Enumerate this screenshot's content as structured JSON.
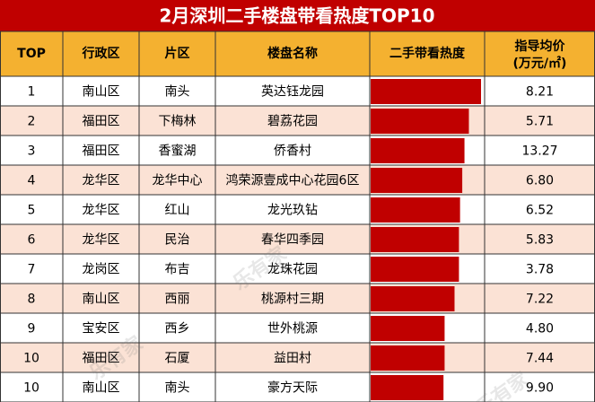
{
  "title": "2月深圳二手楼盘带看热度TOP10",
  "headers": [
    "TOP",
    "行政区",
    "片区",
    "楼盘名称",
    "二手带看热度",
    "指导均价"
  ],
  "price_unit": "(万元/㎡)",
  "watermark": "乐有家",
  "rows": [
    {
      "rank": 1,
      "district": "南山区",
      "area": "南头",
      "name": "英达钰龙园",
      "heat": 100,
      "price": "8.21"
    },
    {
      "rank": 2,
      "district": "福田区",
      "area": "下梅林",
      "name": "碧荔花园",
      "heat": 89,
      "price": "5.71"
    },
    {
      "rank": 3,
      "district": "福田区",
      "area": "香蜜湖",
      "name": "侨香村",
      "heat": 85,
      "price": "13.27"
    },
    {
      "rank": 4,
      "district": "龙华区",
      "area": "龙华中心",
      "name": "鸿荣源壹成中心花园6区",
      "heat": 83,
      "price": "6.80"
    },
    {
      "rank": 5,
      "district": "龙华区",
      "area": "红山",
      "name": "龙光玖钻",
      "heat": 81,
      "price": "6.52"
    },
    {
      "rank": 6,
      "district": "龙华区",
      "area": "民治",
      "name": "春华四季园",
      "heat": 80,
      "price": "5.83"
    },
    {
      "rank": 7,
      "district": "龙岗区",
      "area": "布吉",
      "name": "龙珠花园",
      "heat": 80,
      "price": "3.78"
    },
    {
      "rank": 8,
      "district": "南山区",
      "area": "西丽",
      "name": "桃源村三期",
      "heat": 76,
      "price": "7.22"
    },
    {
      "rank": 9,
      "district": "宝安区",
      "area": "西乡",
      "name": "世外桃源",
      "heat": 67,
      "price": "4.80"
    },
    {
      "rank": 10,
      "district": "福田区",
      "area": "石厦",
      "name": "益田村",
      "heat": 67,
      "price": "7.44"
    },
    {
      "rank": 10,
      "district": "南山区",
      "area": "南头",
      "name": "豪方天际",
      "heat": 66,
      "price": "9.90"
    }
  ]
}
